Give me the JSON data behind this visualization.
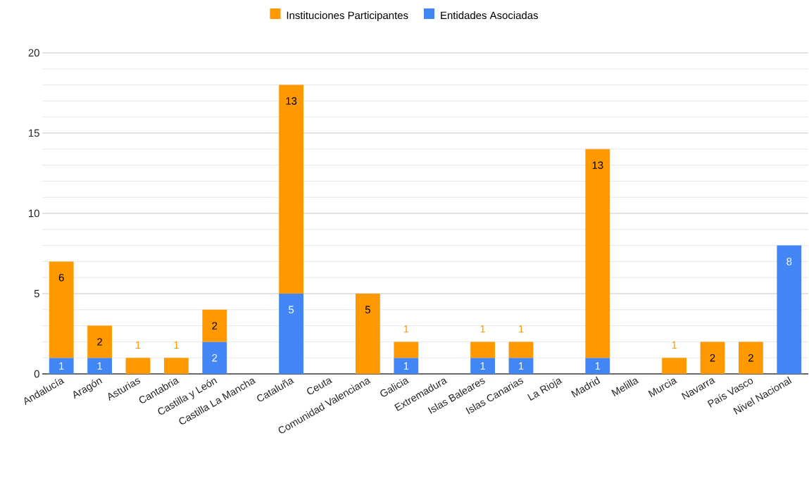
{
  "chart_data": {
    "type": "bar",
    "stacked": true,
    "categories": [
      "Andalucía",
      "Aragón",
      "Asturias",
      "Cantabria",
      "Castilla y León",
      "Castilla La Mancha",
      "Cataluña",
      "Ceuta",
      "Comunidad Valenciana",
      "Galicia",
      "Extremadura",
      "Islas Baleares",
      "Islas Canarias",
      "La Rioja",
      "Madrid",
      "Melilla",
      "Murcia",
      "Navarra",
      "País Vasco",
      "Nivel Nacional"
    ],
    "series": [
      {
        "name": "Entidades Asociadas",
        "color": "#4285f4",
        "values": [
          1,
          1,
          null,
          null,
          2,
          null,
          5,
          null,
          null,
          1,
          null,
          1,
          1,
          null,
          1,
          null,
          null,
          null,
          null,
          8
        ]
      },
      {
        "name": "Instituciones Participantes",
        "color": "#ff9900",
        "values": [
          6,
          2,
          1,
          1,
          2,
          null,
          13,
          null,
          5,
          1,
          null,
          1,
          1,
          null,
          13,
          null,
          1,
          2,
          2,
          null
        ]
      }
    ],
    "ylim": [
      0,
      20
    ],
    "yticks": [
      0,
      5,
      10,
      15,
      20
    ],
    "grid": "y",
    "legend": "top",
    "data_labels": true
  }
}
